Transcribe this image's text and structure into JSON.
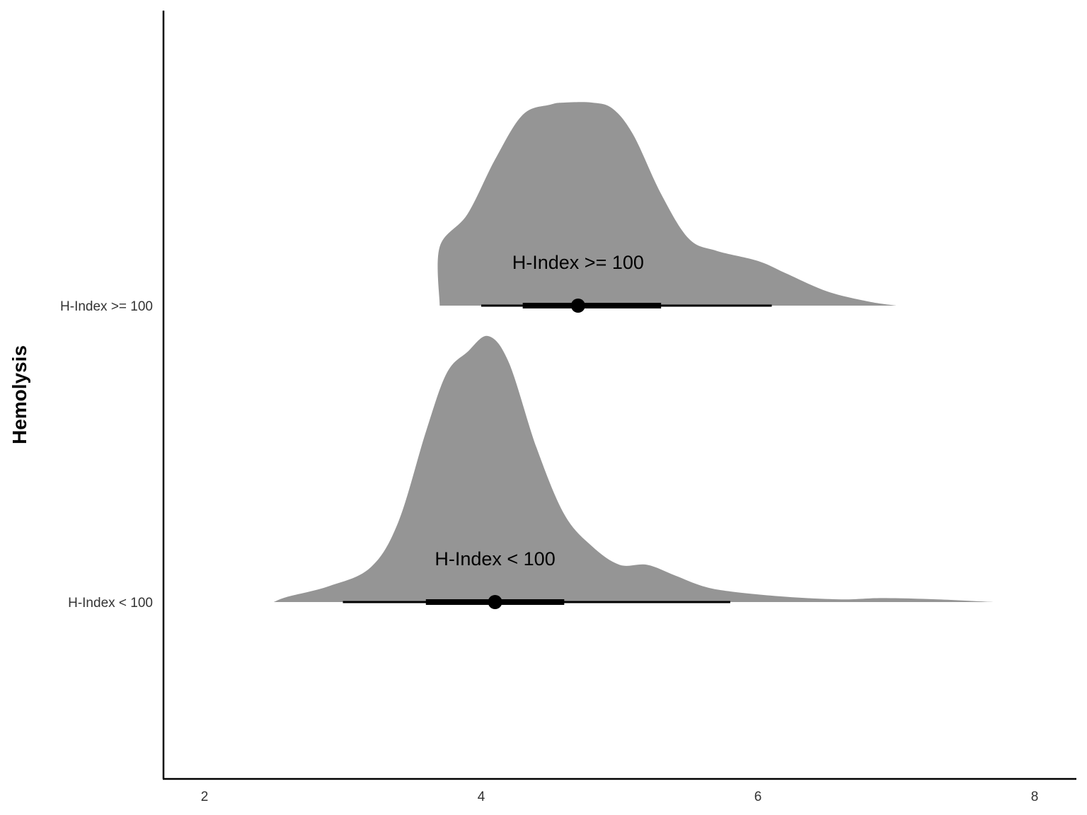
{
  "chart_data": {
    "type": "halfeye",
    "ylabel": "Hemolysis",
    "xlabel": "",
    "xlim": [
      1.65,
      8.3
    ],
    "x_ticks": [
      2,
      4,
      6,
      8
    ],
    "x_tick_labels": [
      "2",
      "4",
      "6",
      "8"
    ],
    "categories": [
      "H-Index >= 100",
      "H-Index < 100"
    ],
    "series": [
      {
        "name": "H-Index >= 100",
        "label": "H-Index >= 100",
        "median": 4.7,
        "interval_66": [
          4.3,
          5.3
        ],
        "interval_95": [
          4.0,
          6.1
        ],
        "density": {
          "x": [
            3.7,
            3.7,
            3.9,
            4.1,
            4.3,
            4.5,
            4.6,
            4.8,
            4.95,
            5.1,
            5.3,
            5.5,
            5.7,
            6.0,
            6.2,
            6.5,
            6.8,
            7.0
          ],
          "y": [
            0.0,
            0.29,
            0.45,
            0.72,
            0.94,
            0.99,
            1.0,
            1.0,
            0.97,
            0.84,
            0.55,
            0.33,
            0.27,
            0.22,
            0.16,
            0.07,
            0.02,
            0.0
          ]
        }
      },
      {
        "name": "H-Index < 100",
        "label": "H-Index < 100",
        "median": 4.1,
        "interval_66": [
          3.6,
          4.6
        ],
        "interval_95": [
          3.0,
          5.8
        ],
        "density": {
          "x": [
            2.5,
            2.6,
            2.9,
            3.2,
            3.4,
            3.6,
            3.75,
            3.9,
            4.05,
            4.2,
            4.4,
            4.6,
            4.8,
            5.0,
            5.2,
            5.4,
            5.6,
            5.8,
            6.2,
            6.6,
            6.9,
            7.3,
            7.7
          ],
          "y": [
            0.0,
            0.02,
            0.06,
            0.13,
            0.3,
            0.64,
            0.86,
            0.94,
            1.0,
            0.9,
            0.58,
            0.33,
            0.21,
            0.14,
            0.14,
            0.1,
            0.06,
            0.04,
            0.02,
            0.01,
            0.015,
            0.01,
            0.0
          ]
        }
      }
    ]
  }
}
